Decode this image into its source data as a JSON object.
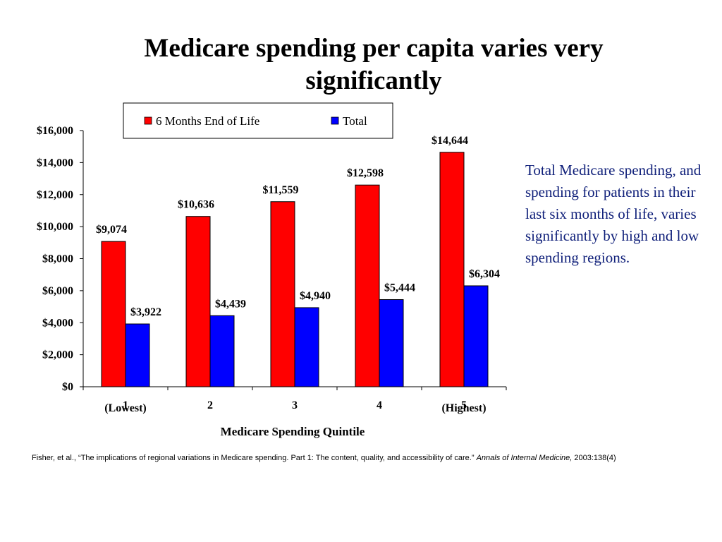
{
  "slide": {
    "title_lines": [
      "Medicare spending per capita varies very",
      "significantly"
    ],
    "side_note": "Total Medicare spending, and spending for patients in their last six months of life, varies significantly by high and low spending regions.",
    "citation": {
      "text": "Fisher, et al., “The implications of regional variations in Medicare spending. Part 1: The content, quality, and accessibility of care.” ",
      "journal": "Annals of Internal Medicine,",
      "tail": " 2003:138(4)"
    }
  },
  "chart_data": {
    "type": "bar",
    "title": "",
    "xlabel": "Medicare Spending Quintile",
    "ylabel": "",
    "ylim": [
      0,
      16000
    ],
    "yticks": [
      0,
      2000,
      4000,
      6000,
      8000,
      10000,
      12000,
      14000,
      16000
    ],
    "ytick_labels": [
      "$0",
      "$2,000",
      "$4,000",
      "$6,000",
      "$8,000",
      "$10,000",
      "$12,000",
      "$14,000",
      "$16,000"
    ],
    "categories": [
      "1",
      "2",
      "3",
      "4",
      "5"
    ],
    "category_sublabels": [
      "(Lowest)",
      "",
      "",
      "",
      "(Highest)"
    ],
    "grid": false,
    "legend_position": "top",
    "series": [
      {
        "name": "6 Months End of Life",
        "color": "#ff0000",
        "values": [
          9074,
          10636,
          11559,
          12598,
          14644
        ],
        "labels": [
          "$9,074",
          "$10,636",
          "$11,559",
          "$12,598",
          "$14,644"
        ]
      },
      {
        "name": "Total",
        "color": "#0000ff",
        "values": [
          3922,
          4439,
          4940,
          5444,
          6304
        ],
        "labels": [
          "$3,922",
          "$4,439",
          "$4,940",
          "$5,444",
          "$6,304"
        ]
      }
    ]
  }
}
